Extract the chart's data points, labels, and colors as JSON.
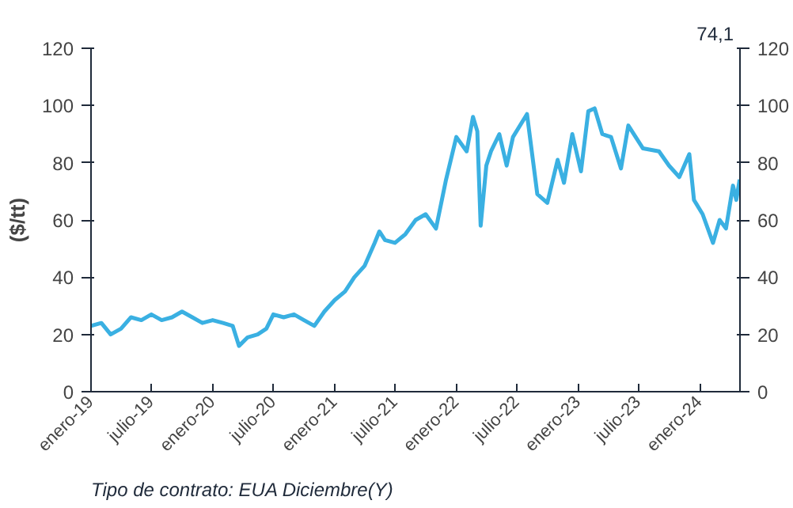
{
  "chart_data": {
    "type": "line",
    "ylabel": "($/tt)",
    "annotations": [
      "74,1",
      "Tipo de contrato: EUA Diciembre(Y)"
    ],
    "xlim": [
      "2019-01-01",
      "2024-05-01"
    ],
    "xticks": [
      {
        "value": "2019-01-01",
        "label": "enero-19"
      },
      {
        "value": "2019-07-01",
        "label": "julio-19"
      },
      {
        "value": "2020-01-01",
        "label": "enero-20"
      },
      {
        "value": "2020-07-01",
        "label": "julio-20"
      },
      {
        "value": "2021-01-01",
        "label": "enero-21"
      },
      {
        "value": "2021-07-01",
        "label": "julio-21"
      },
      {
        "value": "2022-01-01",
        "label": "enero-22"
      },
      {
        "value": "2022-07-01",
        "label": "julio-22"
      },
      {
        "value": "2023-01-01",
        "label": "enero-23"
      },
      {
        "value": "2023-07-01",
        "label": "julio-23"
      },
      {
        "value": "2024-01-01",
        "label": "enero-24"
      }
    ],
    "ylim": [
      0,
      120
    ],
    "yticks": [
      0,
      20,
      40,
      60,
      80,
      100,
      120
    ],
    "y2lim": [
      0,
      120
    ],
    "y2ticks": [
      0,
      20,
      40,
      60,
      80,
      100,
      120
    ],
    "grid": false,
    "series": [
      {
        "color": "#3ab0e2",
        "x": [
          "2019-01-01",
          "2019-02-01",
          "2019-03-01",
          "2019-04-01",
          "2019-05-01",
          "2019-06-01",
          "2019-07-01",
          "2019-08-01",
          "2019-09-01",
          "2019-10-01",
          "2019-11-01",
          "2019-12-01",
          "2020-01-01",
          "2020-02-01",
          "2020-03-01",
          "2020-03-20",
          "2020-04-15",
          "2020-05-15",
          "2020-06-10",
          "2020-07-01",
          "2020-08-01",
          "2020-09-01",
          "2020-10-01",
          "2020-11-01",
          "2020-12-01",
          "2021-01-01",
          "2021-02-01",
          "2021-03-01",
          "2021-04-01",
          "2021-05-01",
          "2021-05-15",
          "2021-06-01",
          "2021-07-01",
          "2021-08-01",
          "2021-09-01",
          "2021-10-01",
          "2021-11-01",
          "2021-12-01",
          "2022-01-01",
          "2022-02-01",
          "2022-02-20",
          "2022-03-05",
          "2022-03-15",
          "2022-04-01",
          "2022-04-15",
          "2022-05-10",
          "2022-06-01",
          "2022-06-20",
          "2022-08-01",
          "2022-09-01",
          "2022-10-01",
          "2022-11-01",
          "2022-11-20",
          "2022-12-15",
          "2023-01-10",
          "2023-02-01",
          "2023-02-20",
          "2023-03-15",
          "2023-04-10",
          "2023-05-10",
          "2023-06-01",
          "2023-07-15",
          "2023-09-01",
          "2023-10-01",
          "2023-11-01",
          "2023-12-01",
          "2023-12-15",
          "2024-01-10",
          "2024-02-10",
          "2024-03-01",
          "2024-03-20",
          "2024-04-10",
          "2024-04-20",
          "2024-04-30"
        ],
        "values": [
          23,
          24,
          20,
          22,
          26,
          25,
          27,
          25,
          26,
          28,
          26,
          24,
          25,
          24,
          23,
          16,
          19,
          20,
          22,
          27,
          26,
          27,
          25,
          23,
          28,
          32,
          35,
          40,
          44,
          52,
          56,
          53,
          52,
          55,
          60,
          62,
          57,
          74,
          89,
          84,
          96,
          91,
          58,
          79,
          84,
          90,
          79,
          89,
          97,
          69,
          66,
          81,
          73,
          90,
          77,
          98,
          99,
          90,
          89,
          78,
          93,
          85,
          84,
          79,
          75,
          83,
          67,
          62,
          52,
          60,
          57,
          72,
          67,
          74.1
        ]
      }
    ]
  }
}
